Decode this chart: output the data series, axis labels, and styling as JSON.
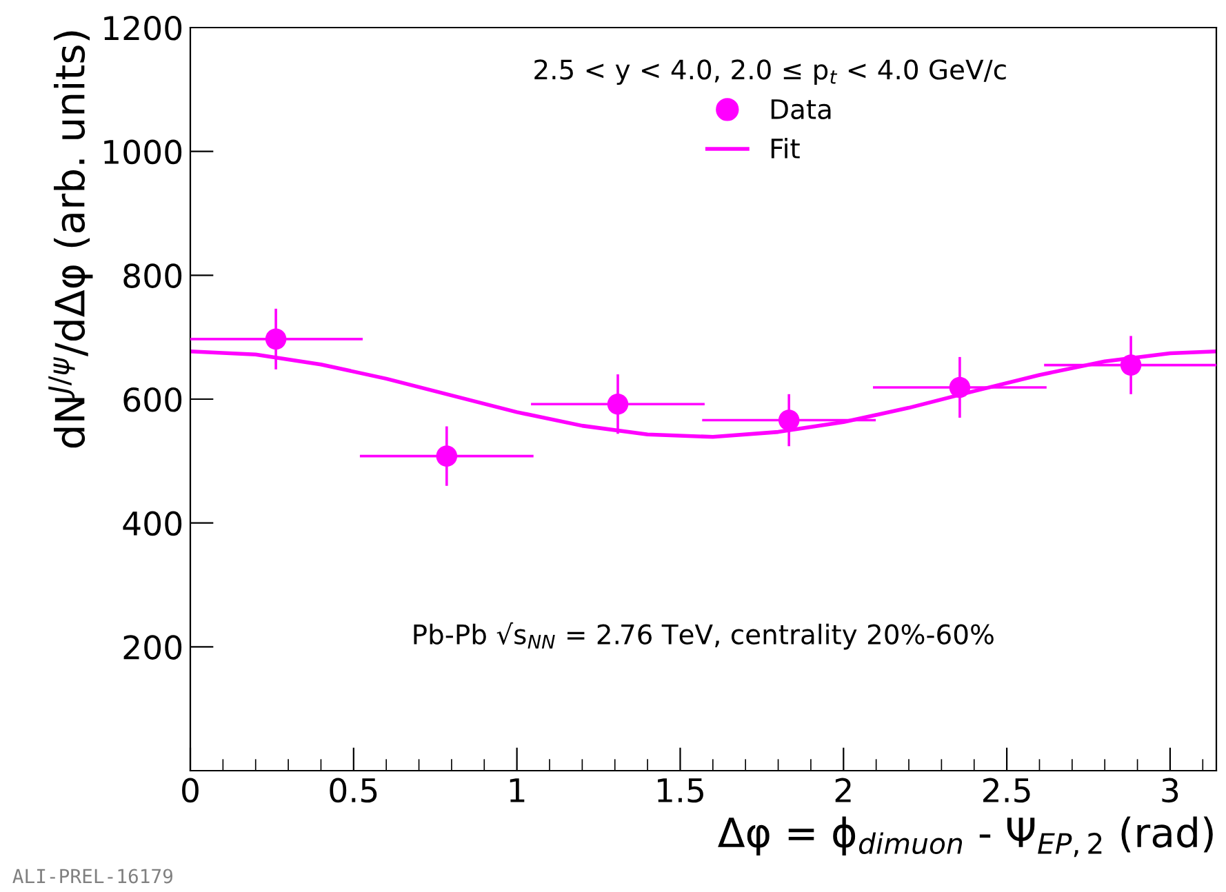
{
  "chart_data": {
    "type": "scatter",
    "xlabel": "Δφ = ϕ$_{dimuon}$ - Ψ$_{EP,2}$ (rad)",
    "ylabel": "dN$^{J/ψ}$/dΔφ (arb. units)",
    "legend_title": "2.5 < y < 4.0, 2.0 ≤ p$_{t}$ < 4.0 GeV/c",
    "annotations": [
      "Pb-Pb √s$_{NN}$ = 2.76 TeV, centrality 20%-60%",
      "ALI-PREL-16179"
    ],
    "xlim": [
      0,
      3.1416
    ],
    "ylim": [
      0,
      1200
    ],
    "xticks": [
      0,
      0.5,
      1,
      1.5,
      2,
      2.5,
      3
    ],
    "yticks": [
      200,
      400,
      600,
      800,
      1000,
      1200
    ],
    "legend": "top right",
    "grid": false,
    "series": [
      {
        "name": "Data",
        "color": "#ff00ff",
        "marker": "circle",
        "x": [
          0.262,
          0.785,
          1.309,
          1.833,
          2.356,
          2.88
        ],
        "values": [
          697,
          508,
          592,
          566,
          619,
          655
        ],
        "errors": [
          47,
          46,
          46,
          40,
          47,
          45
        ],
        "xerrors": [
          0.262,
          0.262,
          0.262,
          0.262,
          0.262,
          0.262
        ]
      },
      {
        "name": "Fit",
        "type": "line",
        "color": "#ff00ff",
        "line_style": "solid",
        "x": [
          0,
          0.2,
          0.4,
          0.6,
          0.8,
          1.0,
          1.2,
          1.4,
          1.6,
          1.8,
          2.0,
          2.2,
          2.4,
          2.6,
          2.8,
          3.0,
          3.1416
        ],
        "values": [
          677,
          672,
          656,
          633,
          606,
          579,
          557,
          543,
          539,
          547,
          563,
          586,
          613,
          639,
          661,
          674,
          677
        ]
      }
    ]
  }
}
